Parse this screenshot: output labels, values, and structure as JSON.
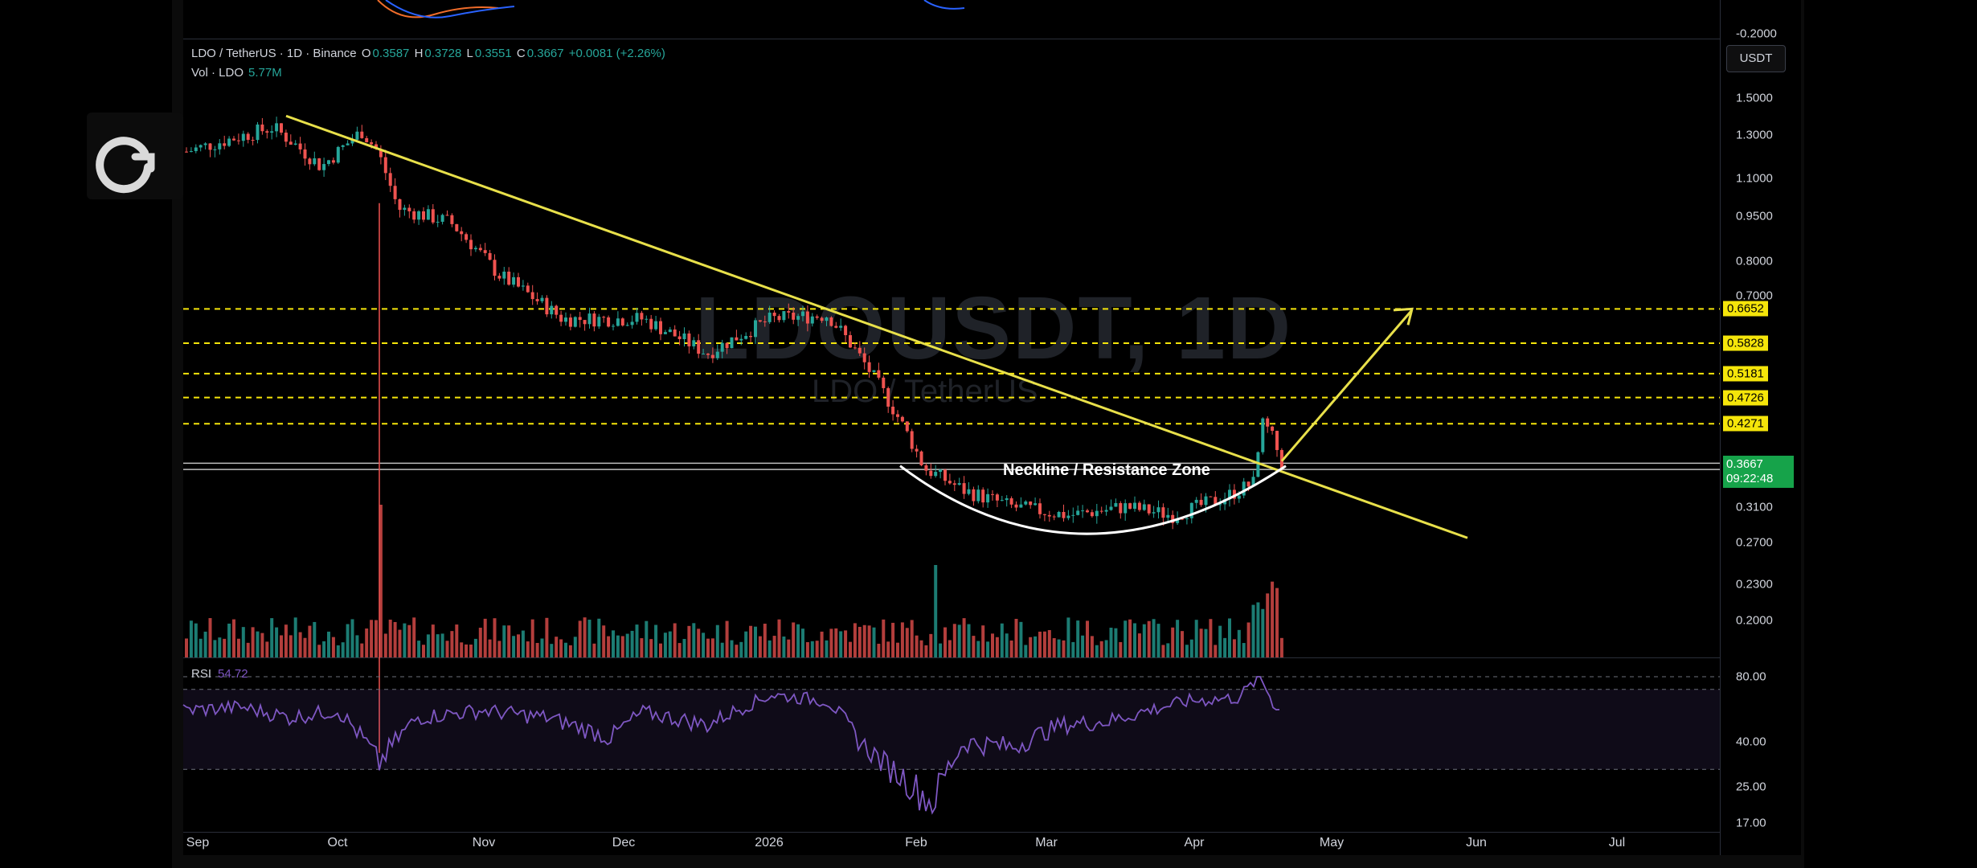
{
  "legend": {
    "pair": "LDO / TetherUS · 1D · Binance",
    "o_label": "O",
    "o": "0.3587",
    "h_label": "H",
    "h": "0.3728",
    "l_label": "L",
    "l": "0.3551",
    "c_label": "C",
    "c": "0.3667",
    "change": "+0.0081 (+2.26%)",
    "vol_label": "Vol · LDO",
    "vol_value": "5.77M"
  },
  "watermark": {
    "symbol": "LDOUSDT, 1D",
    "name": "LDO / TetherUS"
  },
  "currency": "USDT",
  "rsi": {
    "label": "RSI",
    "value": "54.72"
  },
  "annotation": "Neckline /  Resistance Zone",
  "current_price": {
    "price": "0.3667",
    "countdown": "09:22:48"
  },
  "price_ticks": [
    "1.5000",
    "1.3000",
    "1.1000",
    "0.9500",
    "0.8000",
    "0.7000",
    "0.3100",
    "0.2700",
    "0.2300",
    "0.2000"
  ],
  "top_panel_tick": "-0.2000",
  "rsi_ticks": [
    "80.00",
    "40.00",
    "25.00",
    "17.00"
  ],
  "levels": [
    "0.6652",
    "0.5828",
    "0.5181",
    "0.4726",
    "0.4271"
  ],
  "dates": [
    "Sep",
    "Oct",
    "Nov",
    "Dec",
    "2026",
    "Feb",
    "Mar",
    "Apr",
    "May",
    "Jun",
    "Jul"
  ],
  "colors": {
    "up": "#26a69a",
    "down": "#ef5350",
    "trendline": "#e8e04a",
    "level": "#f5e50a",
    "rsi": "#7e57c2",
    "current": "#16a34a"
  },
  "icons": [
    "app-logo-icon"
  ],
  "chart_data": [
    {
      "type": "candlestick",
      "title": "LDOUSDT, 1D",
      "scale": "log",
      "ylim": [
        0.18,
        1.6
      ],
      "x": [
        "2025-09",
        "2025-10",
        "2025-11",
        "2025-12",
        "2026-01",
        "2026-02",
        "2026-03",
        "2026-04",
        "2026-04-20"
      ],
      "series": [
        {
          "name": "close",
          "values": [
            1.22,
            1.28,
            0.92,
            0.67,
            0.66,
            0.31,
            0.29,
            0.33,
            0.3667
          ]
        }
      ],
      "horizontal_levels": [
        0.6652,
        0.5828,
        0.5181,
        0.4726,
        0.4271
      ],
      "resistance_zone": [
        0.358,
        0.368
      ],
      "trendline": [
        [
          "2025-09-20",
          1.4
        ],
        [
          "2026-05-17",
          0.275
        ]
      ],
      "projection_arrow": [
        [
          "2026-04-23",
          0.37
        ],
        [
          "2026-05-15",
          0.66
        ]
      ],
      "grid": false
    },
    {
      "type": "bar",
      "title": "Vol · LDO",
      "values_note_last": "5.77M"
    },
    {
      "type": "line",
      "title": "RSI",
      "last": 54.72,
      "bands": [
        70,
        30
      ],
      "ylim": [
        15,
        82
      ]
    }
  ]
}
